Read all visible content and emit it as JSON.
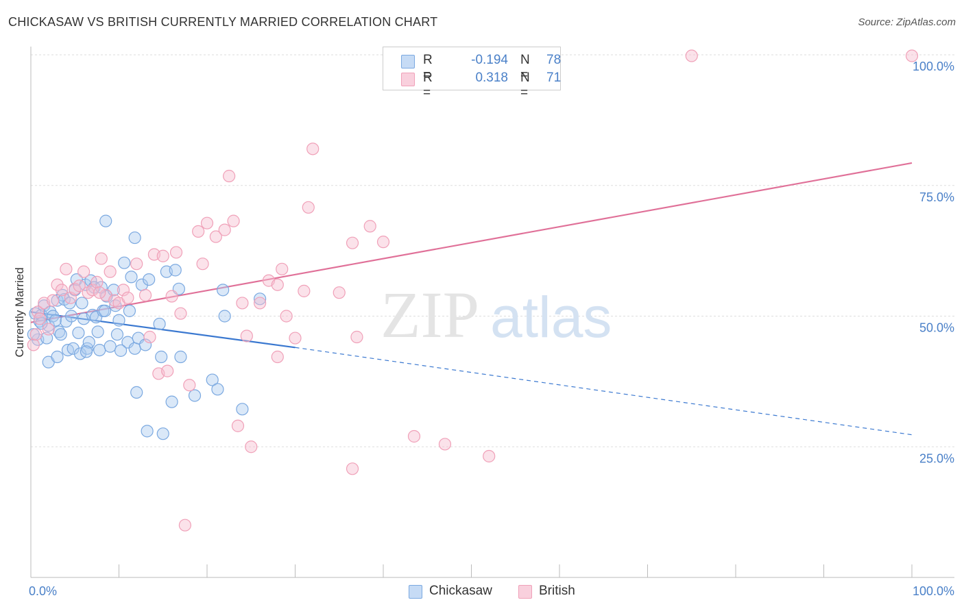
{
  "title": "CHICKASAW VS BRITISH CURRENTLY MARRIED CORRELATION CHART",
  "source": "Source: ZipAtlas.com",
  "watermark": {
    "zip": "ZIP",
    "atlas": "atlas"
  },
  "legend": {
    "rows": [
      {
        "r_label": "R =",
        "r_value": "-0.194",
        "n_label": "N =",
        "n_value": "78",
        "color": "#aecbf0",
        "value_color": "#4a80c8"
      },
      {
        "r_label": "R =",
        "r_value": "0.318",
        "n_label": "N =",
        "n_value": "71",
        "color": "#f7bed0",
        "value_color": "#4a80c8"
      }
    ]
  },
  "colors": {
    "chickasaw": "#7aa8e0",
    "chickasaw_line": "#3a78d0",
    "british": "#f0a0b8",
    "british_line": "#e07098",
    "tick_label": "#4a80c8",
    "grid": "#dddddd"
  },
  "chart_data": {
    "type": "scatter",
    "title": "CHICKASAW VS BRITISH CURRENTLY MARRIED CORRELATION CHART",
    "xlabel": "",
    "ylabel": "Currently Married",
    "xlim": [
      0,
      100
    ],
    "ylim": [
      0,
      100
    ],
    "x_tick_labels": [
      "0.0%",
      "100.0%"
    ],
    "y_ticks": [
      25,
      50,
      75,
      100
    ],
    "y_tick_labels": [
      "25.0%",
      "50.0%",
      "75.0%",
      "100.0%"
    ],
    "grid": true,
    "legend_position": "bottom",
    "series": [
      {
        "name": "Chickasaw",
        "R": -0.194,
        "N": 78,
        "trend": {
          "x0": 0,
          "y0": 50.8,
          "x1": 30,
          "y1": 44.0,
          "dash_to_x": 100,
          "dash_to_y": 27.3
        },
        "points": [
          [
            0.5,
            50.5
          ],
          [
            0.8,
            45.5
          ],
          [
            1.0,
            49.0
          ],
          [
            1.2,
            50.2
          ],
          [
            1.5,
            52.0
          ],
          [
            1.8,
            45.8
          ],
          [
            2.0,
            48.2
          ],
          [
            2.2,
            50.8
          ],
          [
            2.5,
            50.0
          ],
          [
            2.8,
            49.2
          ],
          [
            3.0,
            53.0
          ],
          [
            3.2,
            47.0
          ],
          [
            3.4,
            46.5
          ],
          [
            3.6,
            54.0
          ],
          [
            3.8,
            53.2
          ],
          [
            4.0,
            49.0
          ],
          [
            4.2,
            43.5
          ],
          [
            4.4,
            52.5
          ],
          [
            4.6,
            50.0
          ],
          [
            4.8,
            43.8
          ],
          [
            5.0,
            55.0
          ],
          [
            5.2,
            57.0
          ],
          [
            5.4,
            46.8
          ],
          [
            5.6,
            42.8
          ],
          [
            5.8,
            52.5
          ],
          [
            6.0,
            49.5
          ],
          [
            6.2,
            56.0
          ],
          [
            6.4,
            43.8
          ],
          [
            6.6,
            45.0
          ],
          [
            6.8,
            56.8
          ],
          [
            7.0,
            50.2
          ],
          [
            7.2,
            55.5
          ],
          [
            7.4,
            49.8
          ],
          [
            7.6,
            47.0
          ],
          [
            7.8,
            43.5
          ],
          [
            8.0,
            55.5
          ],
          [
            8.2,
            51.0
          ],
          [
            8.4,
            51.0
          ],
          [
            8.6,
            53.8
          ],
          [
            9.0,
            44.2
          ],
          [
            9.4,
            55.0
          ],
          [
            9.8,
            46.5
          ],
          [
            10.0,
            49.2
          ],
          [
            10.6,
            60.2
          ],
          [
            11.0,
            45.0
          ],
          [
            11.2,
            51.0
          ],
          [
            11.4,
            57.5
          ],
          [
            11.8,
            43.8
          ],
          [
            12.2,
            45.8
          ],
          [
            12.6,
            56.0
          ],
          [
            13.0,
            44.5
          ],
          [
            13.4,
            57.0
          ],
          [
            14.6,
            48.5
          ],
          [
            14.8,
            42.2
          ],
          [
            15.4,
            58.5
          ],
          [
            16.0,
            33.6
          ],
          [
            16.4,
            58.8
          ],
          [
            16.8,
            55.2
          ],
          [
            17.0,
            42.2
          ],
          [
            18.6,
            34.8
          ],
          [
            20.6,
            37.8
          ],
          [
            21.2,
            36.0
          ],
          [
            21.8,
            55.0
          ],
          [
            22.0,
            50.0
          ],
          [
            24.0,
            32.2
          ],
          [
            26.0,
            53.3
          ],
          [
            8.5,
            68.2
          ],
          [
            11.8,
            65.0
          ],
          [
            12.0,
            35.4
          ],
          [
            13.2,
            28.0
          ],
          [
            15.0,
            27.5
          ],
          [
            2.0,
            41.2
          ],
          [
            3.0,
            42.2
          ],
          [
            1.2,
            48.6
          ],
          [
            0.3,
            46.5
          ],
          [
            6.3,
            43.2
          ],
          [
            9.6,
            52.0
          ],
          [
            10.2,
            43.4
          ]
        ]
      },
      {
        "name": "British",
        "R": 0.318,
        "N": 71,
        "trend": {
          "x0": 0,
          "y0": 48.8,
          "x1": 100,
          "y1": 79.3
        },
        "points": [
          [
            0.3,
            44.5
          ],
          [
            0.6,
            46.5
          ],
          [
            0.8,
            50.8
          ],
          [
            1.0,
            49.5
          ],
          [
            1.5,
            52.5
          ],
          [
            2.0,
            47.5
          ],
          [
            2.5,
            53.0
          ],
          [
            3.0,
            56.0
          ],
          [
            3.5,
            55.0
          ],
          [
            4.0,
            59.0
          ],
          [
            4.5,
            53.5
          ],
          [
            5.0,
            55.2
          ],
          [
            5.5,
            55.8
          ],
          [
            6.0,
            58.5
          ],
          [
            6.5,
            54.5
          ],
          [
            7.0,
            55.0
          ],
          [
            7.5,
            56.5
          ],
          [
            8.0,
            61.0
          ],
          [
            8.5,
            54.0
          ],
          [
            9.0,
            58.5
          ],
          [
            9.5,
            53.0
          ],
          [
            10.0,
            52.5
          ],
          [
            10.5,
            55.0
          ],
          [
            11.0,
            53.5
          ],
          [
            12.0,
            60.0
          ],
          [
            13.0,
            54.0
          ],
          [
            13.5,
            46.0
          ],
          [
            14.0,
            61.8
          ],
          [
            14.5,
            39.0
          ],
          [
            15.0,
            61.5
          ],
          [
            15.5,
            39.5
          ],
          [
            16.0,
            53.8
          ],
          [
            16.5,
            62.2
          ],
          [
            17.0,
            50.5
          ],
          [
            18.0,
            36.8
          ],
          [
            19.0,
            66.2
          ],
          [
            19.5,
            60.0
          ],
          [
            20.0,
            67.8
          ],
          [
            21.0,
            65.2
          ],
          [
            22.0,
            66.5
          ],
          [
            23.0,
            68.2
          ],
          [
            24.0,
            52.5
          ],
          [
            24.5,
            46.2
          ],
          [
            25.0,
            25.0
          ],
          [
            26.0,
            52.5
          ],
          [
            27.0,
            56.8
          ],
          [
            28.0,
            56.0
          ],
          [
            28.5,
            59.0
          ],
          [
            29.0,
            50.0
          ],
          [
            30.0,
            45.8
          ],
          [
            31.0,
            54.8
          ],
          [
            31.5,
            70.8
          ],
          [
            35.0,
            54.5
          ],
          [
            36.5,
            64.0
          ],
          [
            37.0,
            46.0
          ],
          [
            38.5,
            67.2
          ],
          [
            40.0,
            64.2
          ],
          [
            43.5,
            27.0
          ],
          [
            47.0,
            25.5
          ],
          [
            52.0,
            23.2
          ],
          [
            36.5,
            20.8
          ],
          [
            17.5,
            10.0
          ],
          [
            22.5,
            76.8
          ],
          [
            23.5,
            29.0
          ],
          [
            32.0,
            82.0
          ],
          [
            28.0,
            42.2
          ],
          [
            75.0,
            99.8
          ],
          [
            100.0,
            99.8
          ],
          [
            50.0,
            97.5
          ],
          [
            49.0,
            95.5
          ],
          [
            7.8,
            54.5
          ]
        ]
      }
    ]
  },
  "bottom_legend": [
    {
      "label": "Chickasaw",
      "color": "#aecbf0"
    },
    {
      "label": "British",
      "color": "#f7bed0"
    }
  ]
}
